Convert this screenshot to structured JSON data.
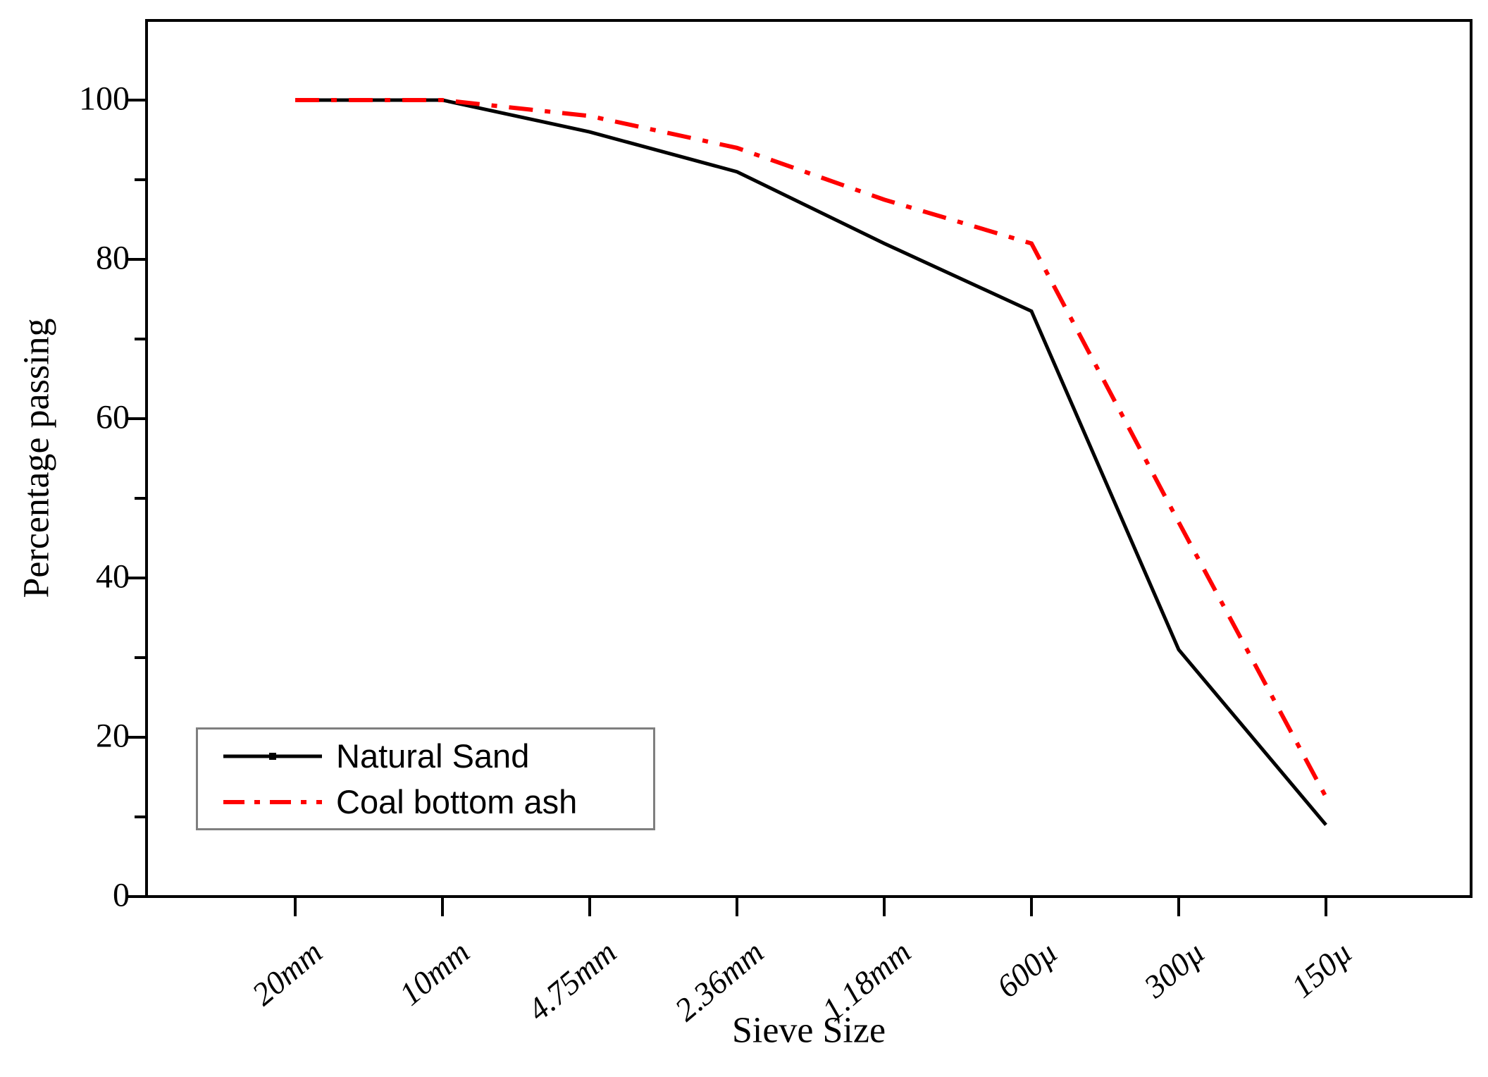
{
  "chart_data": {
    "type": "line",
    "title": "",
    "xlabel": "Sieve Size",
    "ylabel": "Percentage passing",
    "categories": [
      "20mm",
      "10mm",
      "4.75mm",
      "2.36mm",
      "1.18mm",
      "600µ",
      "300µ",
      "150µ"
    ],
    "y_ticks": [
      0,
      20,
      40,
      60,
      80,
      100
    ],
    "y_minor_ticks": [
      10,
      30,
      50,
      70,
      90
    ],
    "ylim": [
      0,
      110
    ],
    "grid": false,
    "legend_position": "bottom-left",
    "series": [
      {
        "name": "Natural Sand",
        "color": "#000000",
        "style": "solid",
        "values": [
          100,
          100,
          96,
          91,
          82,
          73.5,
          31,
          9
        ]
      },
      {
        "name": "Coal bottom ash",
        "color": "#ff0000",
        "style": "dash-dot",
        "values": [
          100,
          100,
          98,
          94,
          87.5,
          82,
          47,
          12.5
        ]
      }
    ]
  }
}
